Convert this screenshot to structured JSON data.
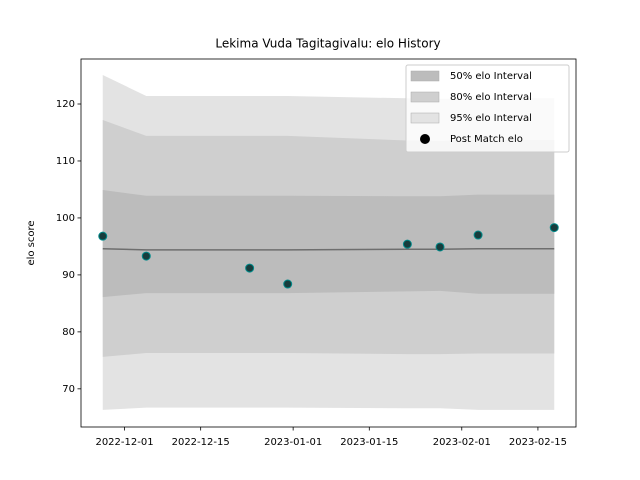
{
  "chart_data": {
    "type": "line",
    "title": "Lekima Vuda Tagitagivalu: elo History",
    "y_label": "elo score",
    "x": [
      "2022-11-27",
      "2022-12-05",
      "2022-12-24",
      "2022-12-31",
      "2023-01-22",
      "2023-01-28",
      "2023-02-04",
      "2023-02-18"
    ],
    "xlim": [
      "2022-11-23",
      "2023-02-22"
    ],
    "xticks": [
      "2022-12-01",
      "2022-12-15",
      "2023-01-01",
      "2023-01-15",
      "2023-02-01",
      "2023-02-15"
    ],
    "ylim": [
      63.3,
      127.9
    ],
    "yticks": [
      70,
      80,
      90,
      100,
      110,
      120
    ],
    "bands": [
      {
        "name": "95% elo Interval",
        "color": "#e3e3e3",
        "upper": [
          125.1,
          121.4,
          121.4,
          121.4,
          121.0,
          120.9,
          121.0,
          121.0
        ],
        "lower": [
          66.3,
          66.7,
          66.7,
          66.7,
          66.6,
          66.6,
          66.3,
          66.3
        ]
      },
      {
        "name": "80% elo Interval",
        "color": "#cfcfcf",
        "upper": [
          117.2,
          114.4,
          114.4,
          114.4,
          113.6,
          113.5,
          113.7,
          113.7
        ],
        "lower": [
          75.6,
          76.3,
          76.3,
          76.3,
          76.1,
          76.1,
          76.2,
          76.2
        ]
      },
      {
        "name": "50% elo Interval",
        "color": "#bcbcbc",
        "upper": [
          104.9,
          103.9,
          103.9,
          103.9,
          103.8,
          103.8,
          104.1,
          104.1
        ],
        "lower": [
          86.1,
          86.8,
          86.8,
          86.8,
          87.1,
          87.2,
          86.7,
          86.7
        ]
      }
    ],
    "line": {
      "color": "#6e6e6e",
      "values": [
        94.6,
        94.4,
        94.4,
        94.4,
        94.5,
        94.5,
        94.6,
        94.6
      ]
    },
    "points": {
      "name": "Post Match elo",
      "color": "#173d3d",
      "edge_color": "#008b8b",
      "legend_color": "#000000",
      "values": [
        96.8,
        93.3,
        91.2,
        88.4,
        95.4,
        94.9,
        97.0,
        98.3
      ]
    }
  }
}
